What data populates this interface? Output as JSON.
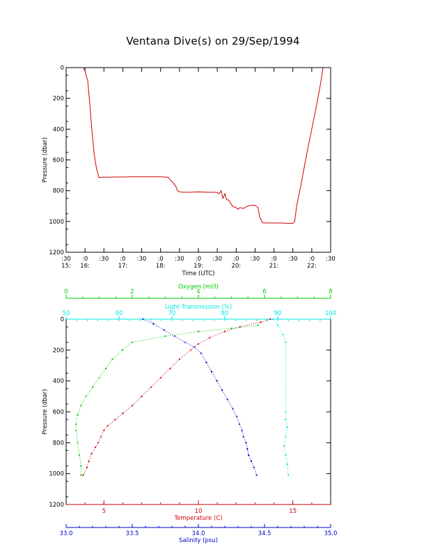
{
  "title": "Ventana Dive(s) on 29/Sep/1994",
  "colors": {
    "axis": "#000000",
    "temperature": "#cc0000",
    "salinity": "#0000cc",
    "oxygen": "#00cc00",
    "transmission": "#00e5e5",
    "trace": "#cc0000"
  },
  "chart_data": [
    {
      "type": "line",
      "xlabel": "Time (UTC)",
      "ylabel": "Pressure (dbar)",
      "xlim": [
        15.5,
        22.5
      ],
      "ylim": [
        1200,
        0
      ],
      "y_ticks": [
        "0",
        "200",
        "400",
        "600",
        "800",
        "1000",
        "1200"
      ],
      "x_ticks_minutes": [
        ":30",
        ":0",
        ":30",
        ":0",
        ":30",
        ":0",
        ":30",
        ":0",
        ":30",
        ":0",
        ":30",
        ":0",
        ":30",
        ":0",
        ":30"
      ],
      "x_ticks_hours": [
        "15:",
        "16:",
        "17:",
        "18:",
        "19:",
        "20:",
        "21:",
        "22:"
      ],
      "series": [
        {
          "x": [
            15.95,
            16.0,
            16.04,
            16.07,
            16.12,
            16.18,
            16.24,
            16.3,
            16.37,
            16.45,
            16.5,
            16.6,
            16.8,
            17.0,
            17.2,
            17.4,
            17.6,
            17.8,
            18.0,
            18.1,
            18.15,
            18.2,
            18.25,
            18.3,
            18.35,
            18.4,
            18.45,
            18.5,
            18.6,
            18.8,
            19.0,
            19.2,
            19.4,
            19.5,
            19.55,
            19.6,
            19.65,
            19.7,
            19.75,
            19.8,
            19.9,
            20.0,
            20.05,
            20.1,
            20.2,
            20.3,
            20.4,
            20.5,
            20.58,
            20.62,
            20.7,
            20.8,
            21.0,
            21.2,
            21.4,
            21.5,
            21.55,
            21.6,
            21.7,
            21.8,
            21.9,
            22.0,
            22.1,
            22.2,
            22.25,
            22.3
          ],
          "y": [
            0,
            20,
            60,
            80,
            220,
            400,
            560,
            650,
            715,
            712,
            712,
            712,
            711,
            711,
            710,
            710,
            710,
            710,
            710,
            711,
            712,
            712,
            730,
            740,
            755,
            770,
            800,
            808,
            810,
            810,
            808,
            810,
            810,
            812,
            820,
            800,
            850,
            820,
            860,
            860,
            900,
            910,
            920,
            910,
            915,
            900,
            895,
            895,
            910,
            970,
            1008,
            1010,
            1010,
            1010,
            1012,
            1012,
            1000,
            900,
            780,
            650,
            520,
            400,
            280,
            150,
            80,
            0
          ]
        }
      ]
    },
    {
      "type": "scatter",
      "ylabel": "Pressure (dbar)",
      "ylim": [
        1200,
        0
      ],
      "y_ticks": [
        "0",
        "200",
        "400",
        "600",
        "800",
        "1000",
        "1200"
      ],
      "axes": {
        "oxygen": {
          "label": "Oxygen (ml/l)",
          "lim": [
            0,
            8
          ],
          "ticks": [
            "0",
            "2",
            "4",
            "6",
            "8"
          ]
        },
        "transmission": {
          "label": "Light Transmission (%)",
          "lim": [
            50,
            100
          ],
          "ticks": [
            "50",
            "60",
            "70",
            "80",
            "90",
            "100"
          ]
        },
        "temperature": {
          "label": "Temperature (C)",
          "lim": [
            3,
            17
          ],
          "ticks": [
            "5",
            "10",
            "15"
          ]
        },
        "salinity": {
          "label": "Salinity (psu)",
          "lim": [
            33.0,
            35.0
          ],
          "ticks": [
            "33.0",
            "33.5",
            "34.0",
            "34.5",
            "35.0"
          ]
        }
      },
      "series": [
        {
          "name": "Temperature",
          "axis": "temperature",
          "x": [
            13.8,
            13.3,
            12.2,
            11.4,
            10.6,
            10.0,
            9.6,
            9.0,
            8.5,
            8.0,
            7.5,
            7.0,
            6.5,
            6.0,
            5.6,
            5.2,
            5.0,
            4.85,
            4.7,
            4.55,
            4.35,
            4.2,
            4.1,
            3.9
          ],
          "y": [
            0,
            20,
            50,
            80,
            120,
            160,
            200,
            260,
            320,
            380,
            440,
            500,
            560,
            610,
            650,
            690,
            720,
            760,
            800,
            830,
            870,
            920,
            960,
            1010
          ]
        },
        {
          "name": "Salinity",
          "axis": "salinity",
          "x": [
            33.58,
            33.66,
            33.74,
            33.82,
            33.9,
            33.97,
            34.02,
            34.06,
            34.1,
            34.14,
            34.18,
            34.22,
            34.26,
            34.29,
            34.31,
            34.33,
            34.34,
            34.36,
            34.37,
            34.38,
            34.4,
            34.42,
            34.44
          ],
          "y": [
            0,
            30,
            70,
            110,
            150,
            180,
            220,
            280,
            340,
            400,
            460,
            520,
            580,
            630,
            680,
            720,
            760,
            800,
            840,
            880,
            920,
            960,
            1010
          ]
        },
        {
          "name": "Oxygen",
          "axis": "oxygen",
          "x": [
            5.8,
            5.0,
            4.0,
            3.0,
            2.0,
            1.7,
            1.4,
            1.2,
            1.0,
            0.8,
            0.6,
            0.45,
            0.35,
            0.3,
            0.3,
            0.35,
            0.4,
            0.45,
            0.45
          ],
          "y": [
            40,
            60,
            80,
            110,
            150,
            200,
            260,
            320,
            380,
            440,
            500,
            560,
            620,
            680,
            720,
            800,
            880,
            950,
            1010
          ]
        },
        {
          "name": "Light Transmission",
          "axis": "transmission",
          "x": [
            89,
            90,
            91,
            91.5,
            91.5,
            91.5,
            91.8,
            91.5,
            91.2,
            91.5,
            91.8,
            92
          ],
          "y": [
            0,
            40,
            100,
            150,
            600,
            650,
            700,
            760,
            820,
            880,
            940,
            1010
          ]
        }
      ]
    }
  ]
}
